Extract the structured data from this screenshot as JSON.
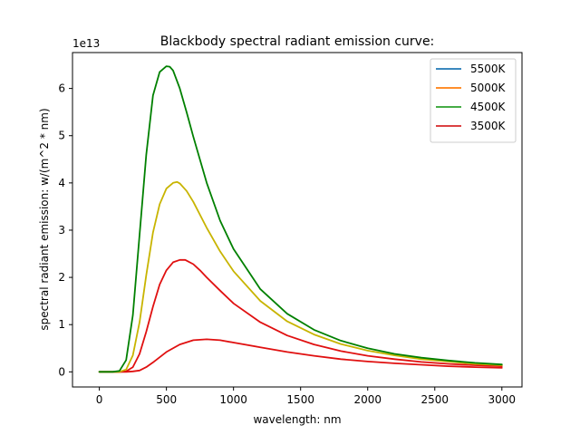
{
  "chart_data": {
    "type": "line",
    "title": "Blackbody spectral radiant emission curve:",
    "xlabel": "wavelength: nm",
    "ylabel": "spectral radiant emission: w/(m^2 * nm)",
    "y_offset_label": "1e13",
    "xlim": [
      -200,
      3150
    ],
    "ylim": [
      -0.32,
      6.76
    ],
    "y_unit_multiplier": 10000000000000,
    "x_ticks": [
      0,
      500,
      1000,
      1500,
      2000,
      2500,
      3000
    ],
    "x_tick_labels": [
      "0",
      "500",
      "1000",
      "1500",
      "2000",
      "2500",
      "3000"
    ],
    "y_ticks": [
      0,
      1,
      2,
      3,
      4,
      5,
      6
    ],
    "y_tick_labels": [
      "0",
      "1",
      "2",
      "3",
      "4",
      "5",
      "6"
    ],
    "grid": false,
    "legend_position": "top-right",
    "legend": [
      {
        "label": "5500K",
        "color": "#1f77b4"
      },
      {
        "label": "5000K",
        "color": "#ff7f0e"
      },
      {
        "label": "4500K",
        "color": "#2ca02c"
      },
      {
        "label": "3500K",
        "color": "#d62728"
      }
    ],
    "curves": [
      {
        "color": "#008000",
        "x": [
          0,
          100,
          150,
          200,
          250,
          300,
          350,
          400,
          450,
          500,
          525,
          550,
          600,
          650,
          700,
          800,
          900,
          1000,
          1200,
          1400,
          1600,
          1800,
          2000,
          2200,
          2400,
          2600,
          2800,
          3000
        ],
        "y": [
          0,
          0,
          0.02,
          0.25,
          1.2,
          2.9,
          4.6,
          5.85,
          6.35,
          6.47,
          6.46,
          6.38,
          6.0,
          5.5,
          4.98,
          4.0,
          3.2,
          2.6,
          1.75,
          1.23,
          0.89,
          0.66,
          0.5,
          0.38,
          0.3,
          0.24,
          0.19,
          0.155
        ]
      },
      {
        "color": "#c8b400",
        "x": [
          0,
          100,
          150,
          200,
          250,
          300,
          350,
          400,
          450,
          500,
          550,
          580,
          600,
          650,
          700,
          800,
          900,
          1000,
          1200,
          1400,
          1600,
          1800,
          2000,
          2200,
          2400,
          2600,
          2800,
          3000
        ],
        "y": [
          0,
          0,
          0,
          0.05,
          0.35,
          1.05,
          2.05,
          2.95,
          3.55,
          3.88,
          4.0,
          4.02,
          3.99,
          3.83,
          3.6,
          3.05,
          2.55,
          2.13,
          1.5,
          1.07,
          0.79,
          0.59,
          0.45,
          0.35,
          0.27,
          0.22,
          0.17,
          0.14
        ]
      },
      {
        "color": "#e01010",
        "x": [
          0,
          100,
          150,
          200,
          250,
          300,
          350,
          400,
          450,
          500,
          550,
          600,
          640,
          700,
          750,
          800,
          900,
          1000,
          1200,
          1400,
          1600,
          1800,
          2000,
          2200,
          2400,
          2600,
          2800,
          3000
        ],
        "y": [
          0,
          0,
          0,
          0.01,
          0.1,
          0.38,
          0.85,
          1.38,
          1.85,
          2.15,
          2.32,
          2.37,
          2.37,
          2.28,
          2.15,
          2.0,
          1.72,
          1.45,
          1.05,
          0.77,
          0.58,
          0.44,
          0.34,
          0.27,
          0.21,
          0.17,
          0.14,
          0.12
        ]
      },
      {
        "color": "#e01010",
        "x": [
          0,
          100,
          200,
          250,
          300,
          350,
          400,
          500,
          600,
          700,
          800,
          900,
          1000,
          1200,
          1400,
          1600,
          1800,
          2000,
          2200,
          2400,
          2600,
          2800,
          3000
        ],
        "y": [
          0,
          0,
          0,
          0.01,
          0.03,
          0.1,
          0.2,
          0.42,
          0.58,
          0.67,
          0.69,
          0.67,
          0.62,
          0.52,
          0.42,
          0.34,
          0.27,
          0.22,
          0.18,
          0.15,
          0.12,
          0.1,
          0.085
        ]
      }
    ]
  }
}
